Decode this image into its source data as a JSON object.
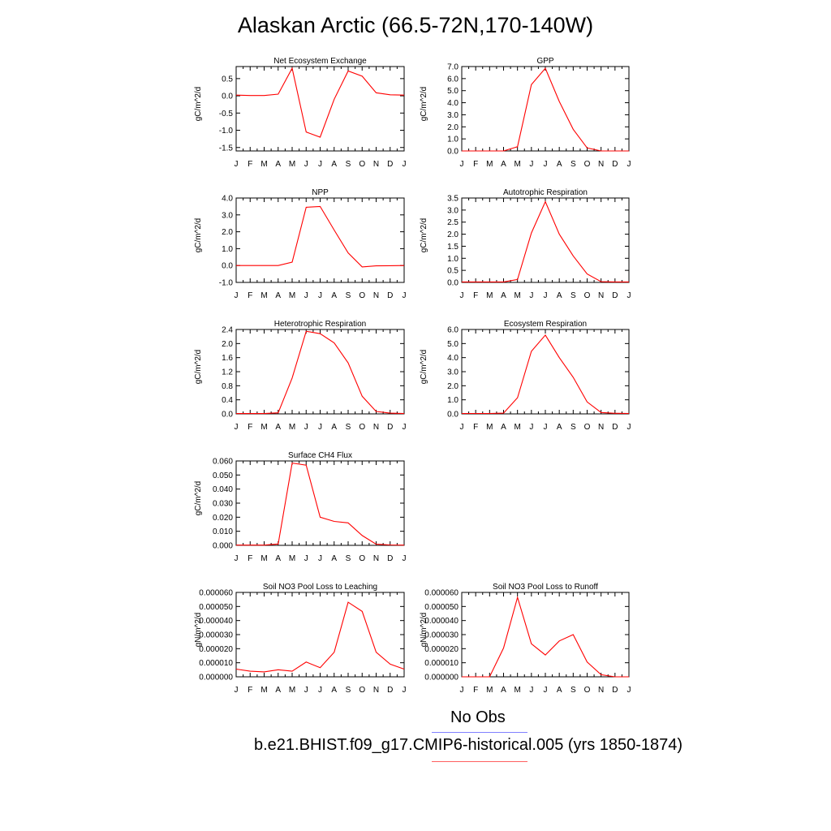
{
  "page": {
    "title": "Alaskan Arctic (66.5-72N,170-140W)",
    "legend": [
      {
        "label": "No Obs",
        "color": "#8080ff"
      },
      {
        "label": "b.e21.BHIST.f09_g17.CMIP6-historical.005 (yrs 1850-1874)",
        "color": "#ff0000"
      }
    ]
  },
  "chart_data": [
    {
      "type": "line",
      "title": "Net Ecosystem Exchange",
      "ylabel": "gC/m^2/d",
      "x": [
        "J",
        "F",
        "M",
        "A",
        "M",
        "J",
        "J",
        "A",
        "S",
        "O",
        "N",
        "D",
        "J"
      ],
      "ylim": [
        -1.6,
        0.85
      ],
      "yticks": [
        "0.5",
        "0.0",
        "-0.5",
        "-1.0",
        "-1.5"
      ],
      "series": [
        {
          "color": "#ff0000",
          "values": [
            0.02,
            0.01,
            0.01,
            0.05,
            0.8,
            -1.05,
            -1.2,
            -0.1,
            0.72,
            0.57,
            0.09,
            0.03,
            0.02
          ]
        }
      ]
    },
    {
      "type": "line",
      "title": "GPP",
      "ylabel": "gC/m^2/d",
      "x": [
        "J",
        "F",
        "M",
        "A",
        "M",
        "J",
        "J",
        "A",
        "S",
        "O",
        "N",
        "D",
        "J"
      ],
      "ylim": [
        0,
        7.0
      ],
      "yticks": [
        "7.0",
        "6.0",
        "5.0",
        "4.0",
        "3.0",
        "2.0",
        "1.0",
        "0.0"
      ],
      "series": [
        {
          "color": "#ff0000",
          "values": [
            0,
            0,
            0,
            0,
            0.35,
            5.5,
            6.85,
            4.1,
            1.8,
            0.25,
            0,
            0,
            0
          ]
        }
      ]
    },
    {
      "type": "line",
      "title": "NPP",
      "ylabel": "gC/m^2/d",
      "x": [
        "J",
        "F",
        "M",
        "A",
        "M",
        "J",
        "J",
        "A",
        "S",
        "O",
        "N",
        "D",
        "J"
      ],
      "ylim": [
        -1.0,
        4.0
      ],
      "yticks": [
        "4.0",
        "3.0",
        "2.0",
        "1.0",
        "0.0",
        "-1.0"
      ],
      "series": [
        {
          "color": "#ff0000",
          "values": [
            0,
            0,
            0,
            0,
            0.2,
            3.45,
            3.5,
            2.1,
            0.75,
            -0.08,
            -0.02,
            -0.01,
            0
          ]
        }
      ]
    },
    {
      "type": "line",
      "title": "Autotrophic Respiration",
      "ylabel": "gC/m^2/d",
      "x": [
        "J",
        "F",
        "M",
        "A",
        "M",
        "J",
        "J",
        "A",
        "S",
        "O",
        "N",
        "D",
        "J"
      ],
      "ylim": [
        0,
        3.5
      ],
      "yticks": [
        "3.5",
        "3.0",
        "2.5",
        "2.0",
        "1.5",
        "1.0",
        "0.5",
        "0.0"
      ],
      "series": [
        {
          "color": "#ff0000",
          "values": [
            0.02,
            0.02,
            0.02,
            0.02,
            0.12,
            2.05,
            3.35,
            2.0,
            1.1,
            0.35,
            0.03,
            0.02,
            0.02
          ]
        }
      ]
    },
    {
      "type": "line",
      "title": "Heterotrophic Respiration",
      "ylabel": "gC/m^2/d",
      "x": [
        "J",
        "F",
        "M",
        "A",
        "M",
        "J",
        "J",
        "A",
        "S",
        "O",
        "N",
        "D",
        "J"
      ],
      "ylim": [
        0,
        2.4
      ],
      "yticks": [
        "2.4",
        "2.0",
        "1.6",
        "1.2",
        "0.8",
        "0.4",
        "0.0"
      ],
      "series": [
        {
          "color": "#ff0000",
          "values": [
            0.01,
            0.01,
            0.01,
            0.03,
            1.02,
            2.35,
            2.28,
            2.02,
            1.45,
            0.5,
            0.07,
            0.02,
            0.01
          ]
        }
      ]
    },
    {
      "type": "line",
      "title": "Ecosystem Respiration",
      "ylabel": "gC/m^2/d",
      "x": [
        "J",
        "F",
        "M",
        "A",
        "M",
        "J",
        "J",
        "A",
        "S",
        "O",
        "N",
        "D",
        "J"
      ],
      "ylim": [
        0,
        6.0
      ],
      "yticks": [
        "6.0",
        "5.0",
        "4.0",
        "3.0",
        "2.0",
        "1.0",
        "0.0"
      ],
      "series": [
        {
          "color": "#ff0000",
          "values": [
            0.03,
            0.03,
            0.03,
            0.05,
            1.15,
            4.45,
            5.6,
            4.0,
            2.6,
            0.85,
            0.1,
            0.04,
            0.03
          ]
        }
      ]
    },
    {
      "type": "line",
      "title": "Surface CH4 Flux",
      "ylabel": "gC/m^2/d",
      "x": [
        "J",
        "F",
        "M",
        "A",
        "M",
        "J",
        "J",
        "A",
        "S",
        "O",
        "N",
        "D",
        "J"
      ],
      "ylim": [
        0,
        0.06
      ],
      "yticks": [
        "0.060",
        "0.050",
        "0.040",
        "0.030",
        "0.020",
        "0.010",
        "0.000"
      ],
      "series": [
        {
          "color": "#ff0000",
          "values": [
            0.0002,
            0.0002,
            0.0002,
            0.001,
            0.0585,
            0.057,
            0.02,
            0.017,
            0.016,
            0.007,
            0.0008,
            0.0003,
            0.0002
          ]
        }
      ]
    },
    {
      "type": "line",
      "title": "Soil NO3 Pool Loss to Leaching",
      "ylabel": "gN/m^2/d",
      "x": [
        "J",
        "F",
        "M",
        "A",
        "M",
        "J",
        "J",
        "A",
        "S",
        "O",
        "N",
        "D",
        "J"
      ],
      "ylim": [
        0,
        6e-05
      ],
      "yticks": [
        "0.000060",
        "0.000050",
        "0.000040",
        "0.000030",
        "0.000020",
        "0.000010",
        "0.000000"
      ],
      "series": [
        {
          "color": "#ff0000",
          "values": [
            5.5e-06,
            4e-06,
            3.5e-06,
            5e-06,
            4e-06,
            1.05e-05,
            6.5e-06,
            1.75e-05,
            5.3e-05,
            4.65e-05,
            1.75e-05,
            9e-06,
            5.5e-06
          ]
        }
      ]
    },
    {
      "type": "line",
      "title": "Soil NO3 Pool Loss to Runoff",
      "ylabel": "gN/m^2/d",
      "x": [
        "J",
        "F",
        "M",
        "A",
        "M",
        "J",
        "J",
        "A",
        "S",
        "O",
        "N",
        "D",
        "J"
      ],
      "ylim": [
        0,
        6e-05
      ],
      "yticks": [
        "0.000060",
        "0.000050",
        "0.000040",
        "0.000030",
        "0.000020",
        "0.000010",
        "0.000000"
      ],
      "series": [
        {
          "color": "#ff0000",
          "values": [
            0,
            0,
            0,
            2.05e-05,
            5.65e-05,
            2.35e-05,
            1.55e-05,
            2.55e-05,
            3e-05,
            1.05e-05,
            1.5e-06,
            0,
            0
          ]
        }
      ]
    }
  ]
}
